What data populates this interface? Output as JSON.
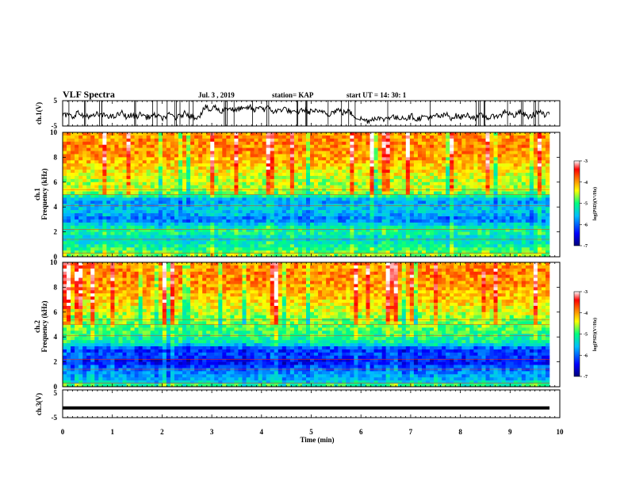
{
  "header": {
    "title": "VLF Spectra",
    "date": "Jul. 3 , 2019",
    "station": "station= KAP",
    "start": "start UT = 14: 30: 1"
  },
  "chart_data": [
    {
      "type": "line",
      "id": "ch1-waveform",
      "ylabel": "ch.1(V)",
      "ylim": [
        -5,
        5
      ],
      "yticks": [
        "5",
        "-5"
      ],
      "xlim": [
        0,
        10
      ],
      "note_values": "noisy waveform estimated: baseline roughly -1 V with bursts up to about +4 V",
      "y_samples": [
        -1.0,
        -0.5,
        -1.5,
        0.5,
        -1.2,
        -0.8,
        -1.5,
        -0.3,
        -1.0,
        -0.6,
        -1.6,
        -0.9,
        0.3,
        -1.4,
        -0.8,
        -1.2,
        -0.2,
        -1.5,
        -1.1,
        -0.7,
        -2.0,
        -1.3,
        -0.4,
        -1.8,
        -1.0,
        0.2,
        -0.9,
        -1.6,
        -0.6,
        2.5,
        1.0,
        2.8,
        0.5,
        1.8,
        2.2,
        0.8,
        2.0,
        1.4,
        2.6,
        0.9,
        3.0,
        1.5,
        2.2,
        0.4,
        1.2,
        2.0,
        1.0,
        0.0,
        0.8,
        1.6,
        0.4,
        1.2,
        0.2,
        1.0,
        -0.4,
        0.6,
        1.4,
        0.2,
        0.9,
        -0.6,
        -1.8,
        -2.4,
        -3.0,
        -2.2,
        -1.6,
        -2.6,
        -1.8,
        -1.0,
        -2.2,
        -1.4,
        -2.0,
        -1.0,
        -2.4,
        -1.6,
        -1.2,
        -2.0,
        -0.8,
        -1.4,
        -0.4,
        -1.8,
        -1.0,
        -1.6,
        -0.6,
        -1.2,
        -1.8,
        -0.8,
        -1.4,
        -2.0,
        -0.6,
        -1.2,
        1.2,
        -0.4,
        -1.0,
        0.6,
        -0.8,
        -1.4,
        -0.2,
        0.8,
        -1.0,
        -0.4
      ]
    },
    {
      "type": "heatmap",
      "id": "ch1-spectrogram",
      "ylabel": "ch.1\nFrequency (kHz)",
      "ylim": [
        0,
        10
      ],
      "yticks": [
        "0",
        "2",
        "4",
        "6",
        "8",
        "10"
      ],
      "xlim": [
        0,
        10
      ],
      "colorbar_label": "log(PSD)(V²/Hz)",
      "colorbar_range": [
        -7,
        -3
      ],
      "colorbar_ticks": [
        "-3",
        "-4",
        "-5",
        "-6",
        "-7"
      ],
      "freq_profile": [
        {
          "kHz": 0.0,
          "v": -4.6
        },
        {
          "kHz": 0.5,
          "v": -4.9
        },
        {
          "kHz": 1.0,
          "v": -5.2
        },
        {
          "kHz": 1.5,
          "v": -5.4
        },
        {
          "kHz": 2.0,
          "v": -5.0
        },
        {
          "kHz": 2.5,
          "v": -5.3
        },
        {
          "kHz": 3.0,
          "v": -6.0
        },
        {
          "kHz": 3.5,
          "v": -5.6
        },
        {
          "kHz": 4.0,
          "v": -5.5
        },
        {
          "kHz": 4.5,
          "v": -5.8
        },
        {
          "kHz": 5.0,
          "v": -4.9
        },
        {
          "kHz": 5.5,
          "v": -4.5
        },
        {
          "kHz": 6.0,
          "v": -4.6
        },
        {
          "kHz": 7.0,
          "v": -4.3
        },
        {
          "kHz": 8.0,
          "v": -4.0
        },
        {
          "kHz": 9.0,
          "v": -3.9
        },
        {
          "kHz": 10.0,
          "v": -4.0
        }
      ]
    },
    {
      "type": "heatmap",
      "id": "ch2-spectrogram",
      "ylabel": "ch.2\nFrequency (kHz)",
      "ylim": [
        0,
        10
      ],
      "yticks": [
        "0",
        "2",
        "4",
        "6",
        "8",
        "10"
      ],
      "xlim": [
        0,
        10
      ],
      "colorbar_label": "log(PSD)(V²/Hz)",
      "colorbar_range": [
        -7,
        -3
      ],
      "colorbar_ticks": [
        "-3",
        "-4",
        "-5",
        "-6",
        "-7"
      ],
      "freq_profile": [
        {
          "kHz": 0.0,
          "v": -4.8
        },
        {
          "kHz": 0.5,
          "v": -5.6
        },
        {
          "kHz": 1.0,
          "v": -5.8
        },
        {
          "kHz": 1.5,
          "v": -6.0
        },
        {
          "kHz": 2.0,
          "v": -6.5
        },
        {
          "kHz": 2.5,
          "v": -6.1
        },
        {
          "kHz": 3.0,
          "v": -6.3
        },
        {
          "kHz": 3.5,
          "v": -5.2
        },
        {
          "kHz": 4.0,
          "v": -5.0
        },
        {
          "kHz": 4.5,
          "v": -4.9
        },
        {
          "kHz": 5.0,
          "v": -4.8
        },
        {
          "kHz": 5.5,
          "v": -4.7
        },
        {
          "kHz": 6.0,
          "v": -4.5
        },
        {
          "kHz": 7.0,
          "v": -4.2
        },
        {
          "kHz": 8.0,
          "v": -4.0
        },
        {
          "kHz": 9.0,
          "v": -3.9
        },
        {
          "kHz": 10.0,
          "v": -4.0
        }
      ]
    },
    {
      "type": "line",
      "id": "ch3-waveform",
      "ylabel": "ch.3(V)",
      "ylim": [
        -5,
        5
      ],
      "yticks": [
        "5",
        "-5"
      ],
      "xlim": [
        0,
        10
      ],
      "constant_value": -1.5
    }
  ],
  "xaxis": {
    "label": "Time (min)",
    "ticks": [
      "0",
      "1",
      "2",
      "3",
      "4",
      "5",
      "6",
      "7",
      "8",
      "9",
      "10"
    ]
  },
  "colors": {
    "colormap": [
      "#00007a",
      "#0000ff",
      "#00bfff",
      "#00ff80",
      "#ffff00",
      "#ff8000",
      "#ff0000",
      "#ffffff"
    ]
  }
}
